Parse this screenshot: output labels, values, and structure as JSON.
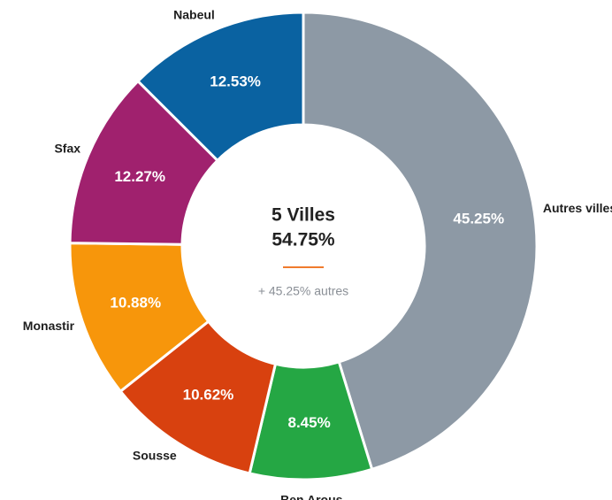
{
  "chart_data": {
    "type": "donut",
    "categories": [
      "Autres villes",
      "Ben Arous",
      "Sousse",
      "Monastir",
      "Sfax",
      "Nabeul"
    ],
    "values": [
      45.25,
      8.45,
      10.62,
      10.88,
      12.27,
      12.53
    ],
    "value_labels": [
      "45.25%",
      "8.45%",
      "10.62%",
      "10.88%",
      "12.27%",
      "12.53%"
    ],
    "colors": [
      "#8d99a5",
      "#25a744",
      "#d8410f",
      "#f7960b",
      "#a0216e",
      "#0a62a1"
    ],
    "center": {
      "title": "5 Villes",
      "value": "54.75%",
      "note": "+ 45.25% autres"
    }
  }
}
